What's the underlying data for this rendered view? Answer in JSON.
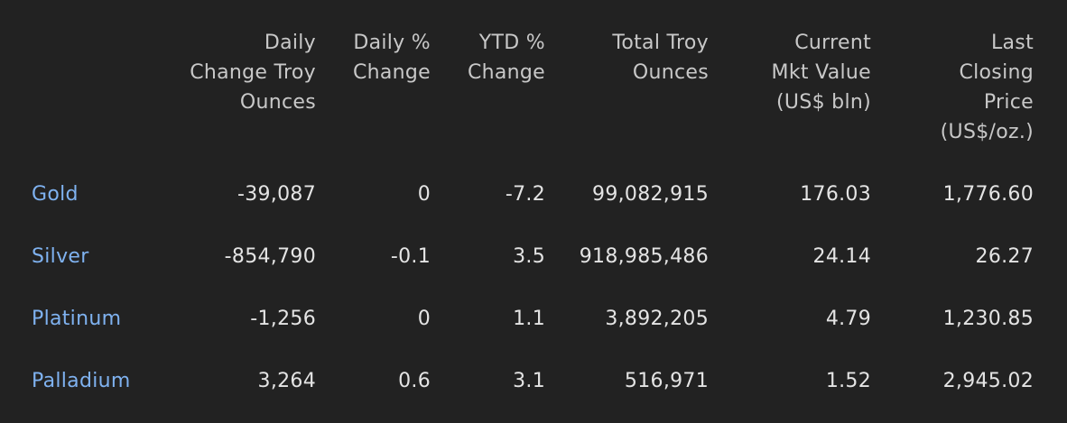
{
  "table": {
    "headers": [
      "",
      "Daily\nChange Troy\nOunces",
      "Daily %\nChange",
      "YTD %\nChange",
      "Total Troy\nOunces",
      "Current\nMkt Value\n(US$ bln)",
      "Last\nClosing\nPrice\n(US$/oz.)"
    ],
    "rows": [
      [
        "Gold",
        "-39,087",
        "0",
        "-7.2",
        "99,082,915",
        "176.03",
        "1,776.60"
      ],
      [
        "Silver",
        "-854,790",
        "-0.1",
        "3.5",
        "918,985,486",
        "24.14",
        "26.27"
      ],
      [
        "Platinum",
        "-1,256",
        "0",
        "1.1",
        "3,892,205",
        "4.79",
        "1,230.85"
      ],
      [
        "Palladium",
        "3,264",
        "0.6",
        "3.1",
        "516,971",
        "1.52",
        "2,945.02"
      ]
    ]
  },
  "colors": {
    "background": "#222222",
    "header_text": "#c8c8c8",
    "cell_text": "#e4e4e4",
    "metal_link": "#7fb2f0"
  }
}
